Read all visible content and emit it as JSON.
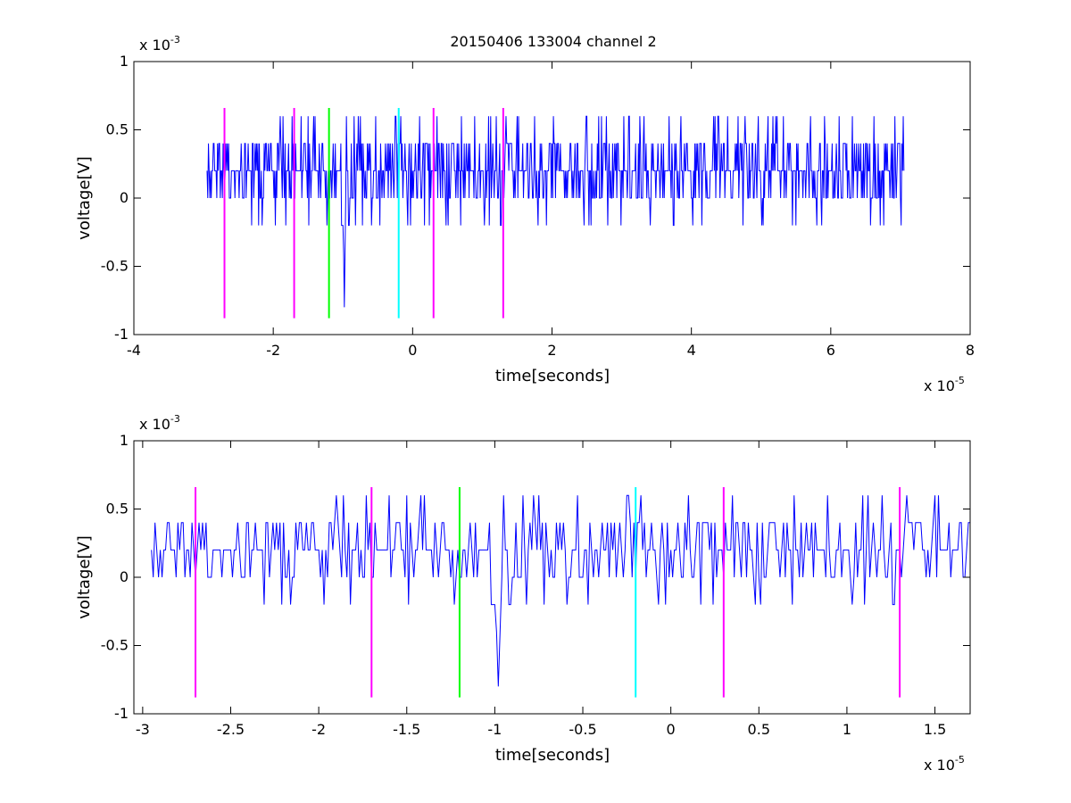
{
  "figure_title": "20150406 133004 channel 2",
  "colors": {
    "signal": "#0000ff",
    "magenta": "#ff00ff",
    "green": "#00ff00",
    "cyan": "#00ffff",
    "axes": "#000000",
    "background": "#ffffff"
  },
  "chart_data": [
    {
      "type": "line",
      "title": "20150406 133004 channel 2",
      "xlabel": "time[seconds]",
      "ylabel": "voltage[V]",
      "x_exponent_label": "x 10",
      "x_exponent": "-5",
      "y_exponent_label": "x 10",
      "y_exponent": "-3",
      "xlim": [
        -4e-05,
        8e-05
      ],
      "ylim": [
        -0.001,
        0.001
      ],
      "xticks": [
        -4e-05,
        -2e-05,
        0,
        2e-05,
        4e-05,
        6e-05,
        8e-05
      ],
      "xtick_labels": [
        "-4",
        "-2",
        "0",
        "2",
        "4",
        "6",
        "8"
      ],
      "yticks": [
        -0.001,
        -0.0005,
        0,
        0.0005,
        0.001
      ],
      "ytick_labels": [
        "-1",
        "-0.5",
        "0",
        "0.5",
        "1"
      ],
      "grid": false,
      "signal": {
        "x_start": -2.95e-05,
        "x_end": 7.05e-05,
        "levels_mV": [
          -0.2,
          0,
          0.2,
          0.4,
          0.6
        ],
        "baseline_mV": 0.2,
        "min_mV": -0.8,
        "max_mV": 0.6
      },
      "markers": [
        {
          "x": -2.7e-05,
          "color": "magenta",
          "y_from": -0.00088,
          "y_to": 0.00066
        },
        {
          "x": -1.7e-05,
          "color": "magenta",
          "y_from": -0.00088,
          "y_to": 0.00066
        },
        {
          "x": -1.2e-05,
          "color": "green",
          "y_from": -0.00088,
          "y_to": 0.00066
        },
        {
          "x": -2e-06,
          "color": "cyan",
          "y_from": -0.00088,
          "y_to": 0.00066
        },
        {
          "x": 3e-06,
          "color": "magenta",
          "y_from": -0.00088,
          "y_to": 0.00066
        },
        {
          "x": 1.3e-05,
          "color": "magenta",
          "y_from": -0.00088,
          "y_to": 0.00066
        }
      ]
    },
    {
      "type": "line",
      "xlabel": "time[seconds]",
      "ylabel": "voltage[V]",
      "x_exponent_label": "x 10",
      "x_exponent": "-5",
      "y_exponent_label": "x 10",
      "y_exponent": "-3",
      "xlim": [
        -3.05e-05,
        1.7e-05
      ],
      "ylim": [
        -0.001,
        0.001
      ],
      "xticks": [
        -3e-05,
        -2.5e-05,
        -2e-05,
        -1.5e-05,
        -1e-05,
        -5e-06,
        0,
        5e-06,
        1e-05,
        1.5e-05
      ],
      "xtick_labels": [
        "-3",
        "-2.5",
        "-2",
        "-1.5",
        "-1",
        "-0.5",
        "0",
        "0.5",
        "1",
        "1.5"
      ],
      "yticks": [
        -0.001,
        -0.0005,
        0,
        0.0005,
        0.001
      ],
      "ytick_labels": [
        "-1",
        "-0.5",
        "0",
        "0.5",
        "1"
      ],
      "grid": false,
      "signal": {
        "x_start": -2.95e-05,
        "x_end": 1.7e-05,
        "levels_mV": [
          -0.2,
          0,
          0.2,
          0.4,
          0.6
        ],
        "baseline_mV": 0.2,
        "min_mV": -0.8,
        "max_mV": 0.6
      },
      "markers": [
        {
          "x": -2.7e-05,
          "color": "magenta",
          "y_from": -0.00088,
          "y_to": 0.00066
        },
        {
          "x": -1.7e-05,
          "color": "magenta",
          "y_from": -0.00088,
          "y_to": 0.00066
        },
        {
          "x": -1.2e-05,
          "color": "green",
          "y_from": -0.00088,
          "y_to": 0.00066
        },
        {
          "x": -2e-06,
          "color": "cyan",
          "y_from": -0.00088,
          "y_to": 0.00066
        },
        {
          "x": 3e-06,
          "color": "magenta",
          "y_from": -0.00088,
          "y_to": 0.00066
        },
        {
          "x": 1.3e-05,
          "color": "magenta",
          "y_from": -0.00088,
          "y_to": 0.00066
        }
      ]
    }
  ]
}
